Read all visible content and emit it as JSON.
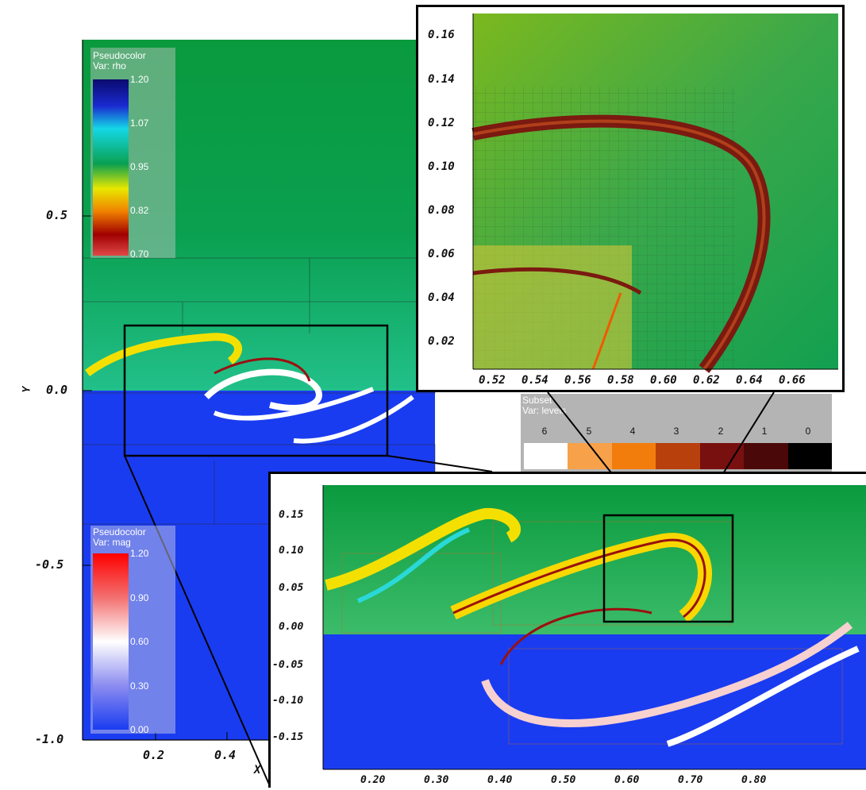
{
  "main_plot": {
    "y_axis_label": "Y",
    "x_axis_label": "X",
    "y_ticks": [
      "0.5",
      "0.0",
      "-0.5",
      "-1.0"
    ],
    "x_ticks": [
      "0.2",
      "0.4"
    ]
  },
  "legend_rho": {
    "title": "Pseudocolor",
    "var": "Var: rho",
    "labels": [
      "1.20",
      "1.07",
      "0.95",
      "0.82",
      "0.70"
    ]
  },
  "legend_mag": {
    "title": "Pseudocolor",
    "var": "Var: mag",
    "labels": [
      "1.20",
      "0.90",
      "0.60",
      "0.30",
      "0.00"
    ]
  },
  "legend_levels": {
    "title": "Subset",
    "var": "Var: levels",
    "levels": [
      "6",
      "5",
      "4",
      "3",
      "2",
      "1",
      "0"
    ],
    "colors": [
      "#ffffff",
      "#f7a14a",
      "#f27d0c",
      "#b8400c",
      "#781010",
      "#4a0808",
      "#000000"
    ]
  },
  "zoom_top": {
    "y_ticks": [
      "0.16",
      "0.14",
      "0.12",
      "0.10",
      "0.08",
      "0.06",
      "0.04",
      "0.02"
    ],
    "x_ticks": [
      "0.52",
      "0.54",
      "0.56",
      "0.58",
      "0.60",
      "0.62",
      "0.64",
      "0.66"
    ]
  },
  "zoom_bottom": {
    "y_ticks": [
      "0.15",
      "0.10",
      "0.05",
      "0.00",
      "-0.05",
      "-0.10",
      "-0.15"
    ],
    "x_ticks": [
      "0.20",
      "0.30",
      "0.40",
      "0.50",
      "0.60",
      "0.70",
      "0.80"
    ]
  },
  "colors": {
    "green_field": "#0a9a3e",
    "blue_field": "#1a3cf0",
    "rho_max": "#0a0a6e",
    "mag_max": "#ff0000"
  }
}
